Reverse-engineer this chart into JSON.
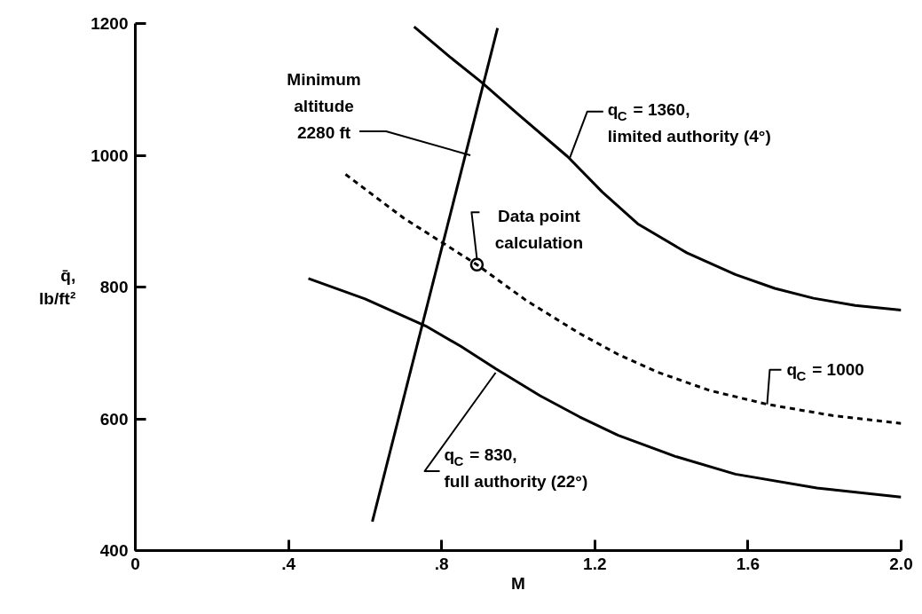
{
  "chart_data": {
    "type": "line",
    "xlabel": "M",
    "ylabel": "q̄, lb/ft²",
    "xlim": [
      0,
      2.0
    ],
    "ylim": [
      400,
      1200
    ],
    "xticks": [
      0,
      {
        "value": 0.4,
        "label": ".4"
      },
      {
        "value": 0.8,
        "label": ".8"
      },
      1.2,
      1.6,
      {
        "value": 2.0,
        "label": "2.0"
      }
    ],
    "yticks": [
      400,
      600,
      800,
      1000,
      1200
    ],
    "grid": false,
    "series": [
      {
        "color": "#000000",
        "line_style": "solid",
        "x": [
          0.619,
          0.946
        ],
        "values": [
          444,
          1193
        ]
      },
      {
        "color": "#000000",
        "line_style": "solid",
        "x": [
          0.728,
          0.82,
          0.904,
          1.0,
          1.129,
          1.22,
          1.312,
          1.44,
          1.567,
          1.67,
          1.771,
          1.88,
          2.0
        ],
        "values": [
          1195,
          1150,
          1111,
          1062,
          998,
          944,
          896,
          852,
          819,
          798,
          783,
          772,
          765
        ]
      },
      {
        "color": "#000000",
        "line_style": "dashed",
        "x": [
          0.549,
          0.7,
          0.892,
          1.02,
          1.159,
          1.26,
          1.363,
          1.5,
          1.65,
          1.82,
          2.0
        ],
        "values": [
          971,
          905,
          834,
          780,
          730,
          698,
          671,
          643,
          622,
          605,
          593
        ]
      },
      {
        "color": "#000000",
        "line_style": "solid",
        "x": [
          0.452,
          0.6,
          0.758,
          0.85,
          0.941,
          1.057,
          1.16,
          1.261,
          1.41,
          1.567,
          1.78,
          2.0
        ],
        "values": [
          813,
          782,
          741,
          710,
          676,
          635,
          603,
          575,
          543,
          516,
          495,
          481
        ]
      },
      {
        "type": "scatter",
        "marker": "circle",
        "color": "#000000",
        "x": [
          0.892
        ],
        "values": [
          834
        ]
      }
    ],
    "annotations": [
      {
        "text": "Minimum\naltitude\n2280 ft",
        "x": 0.875,
        "y": 1000
      },
      {
        "text": "Data point\ncalculation",
        "x": 0.892,
        "y": 834
      },
      {
        "text": "q$_{C}$ = 1360,\nlimited authority (4°)",
        "x": 1.134,
        "y": 995
      },
      {
        "text": "q$_{C}$ = 1000",
        "x": 1.65,
        "y": 622
      },
      {
        "text": "q$_{C}$ = 830,\nfull authority (22°)",
        "x": 0.941,
        "y": 670
      }
    ]
  }
}
